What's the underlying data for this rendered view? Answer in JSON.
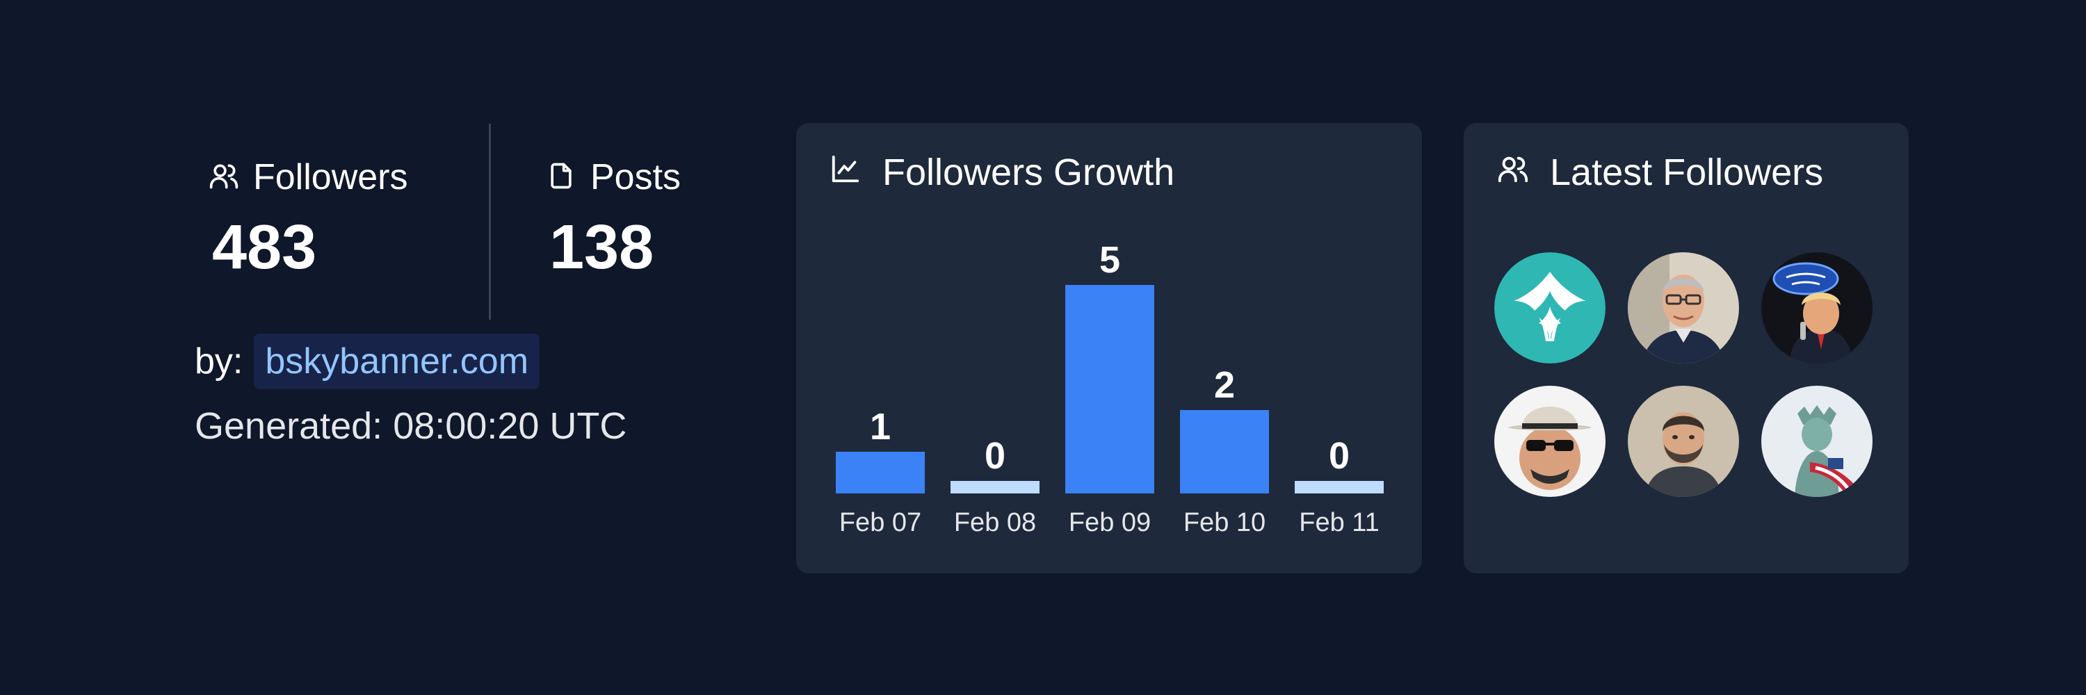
{
  "stats": {
    "followers": {
      "label": "Followers",
      "value": "483"
    },
    "posts": {
      "label": "Posts",
      "value": "138"
    }
  },
  "by": {
    "label": "by:",
    "link": "bskybanner.com"
  },
  "generated": "Generated: 08:00:20 UTC",
  "growth": {
    "title": "Followers Growth"
  },
  "latest": {
    "title": "Latest Followers",
    "avatars": [
      "teal-logo-avatar",
      "man-glasses-avatar",
      "american-idiot-avatar",
      "man-hat-sunglasses-avatar",
      "bearded-man-avatar",
      "statue-of-liberty-avatar"
    ]
  },
  "colors": {
    "background": "#0f172a",
    "card": "#1e293b",
    "bar": "#3b82f6",
    "bar_zero": "#bfdbfe",
    "link": "#93c5fd"
  },
  "chart_data": {
    "type": "bar",
    "title": "Followers Growth",
    "categories": [
      "Feb 07",
      "Feb 08",
      "Feb 09",
      "Feb 10",
      "Feb 11"
    ],
    "values": [
      1,
      0,
      5,
      2,
      0
    ],
    "xlabel": "",
    "ylabel": "",
    "ylim": [
      0,
      5
    ],
    "grid": false
  }
}
